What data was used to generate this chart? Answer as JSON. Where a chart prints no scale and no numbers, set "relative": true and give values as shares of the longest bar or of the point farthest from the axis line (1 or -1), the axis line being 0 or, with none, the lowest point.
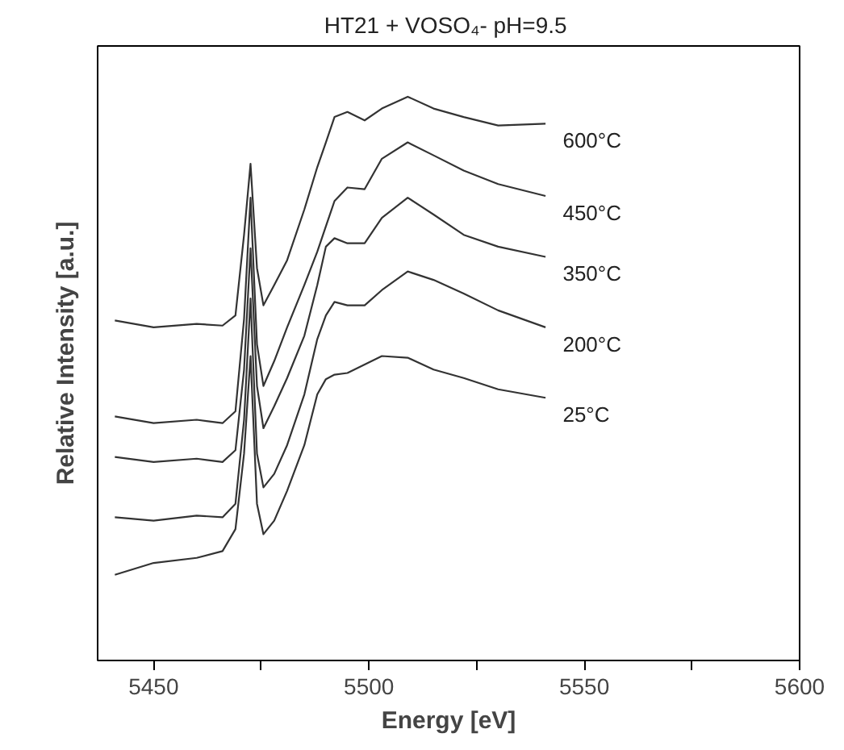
{
  "chart_data": {
    "type": "line",
    "title": "HT21 + VOSO₄-  pH=9.5",
    "xlabel": "Energy [eV]",
    "ylabel": "Relative Intensity [a.u.]",
    "relative": true,
    "xlim": [
      5437,
      5600
    ],
    "xticks": [
      5450,
      {
        "value": 5475,
        "label": null
      },
      5500,
      {
        "value": 5525,
        "label": null
      },
      5550,
      {
        "value": 5575,
        "label": null
      },
      5600
    ],
    "x": [
      5441,
      5450,
      5460,
      5466,
      5469,
      5471,
      5472.5,
      5474,
      5475.5,
      5478,
      5481,
      5485,
      5488,
      5490,
      5492,
      5495,
      5499,
      5503,
      5509,
      5515,
      5522,
      5530,
      5541
    ],
    "grid": false,
    "marker": "none",
    "line_style": "solid",
    "series": [
      {
        "name": "600°C",
        "color": "#333333",
        "values": [
          0.603,
          0.591,
          0.597,
          0.594,
          0.612,
          0.755,
          0.881,
          0.696,
          0.63,
          0.666,
          0.71,
          0.8,
          0.875,
          0.919,
          0.964,
          0.973,
          0.958,
          0.979,
          1.0,
          0.979,
          0.964,
          0.949,
          0.952
        ]
      },
      {
        "name": "450°C",
        "color": "#333333",
        "values": [
          0.433,
          0.421,
          0.427,
          0.421,
          0.442,
          0.606,
          0.821,
          0.561,
          0.487,
          0.531,
          0.591,
          0.666,
          0.725,
          0.77,
          0.815,
          0.839,
          0.836,
          0.89,
          0.919,
          0.896,
          0.869,
          0.845,
          0.824
        ]
      },
      {
        "name": "350°C",
        "color": "#333333",
        "values": [
          0.361,
          0.352,
          0.358,
          0.352,
          0.373,
          0.516,
          0.731,
          0.487,
          0.412,
          0.451,
          0.501,
          0.576,
          0.666,
          0.734,
          0.749,
          0.74,
          0.74,
          0.785,
          0.821,
          0.791,
          0.755,
          0.734,
          0.716
        ]
      },
      {
        "name": "200°C",
        "color": "#333333",
        "values": [
          0.254,
          0.248,
          0.257,
          0.254,
          0.278,
          0.427,
          0.642,
          0.367,
          0.307,
          0.331,
          0.382,
          0.472,
          0.57,
          0.612,
          0.636,
          0.63,
          0.63,
          0.657,
          0.69,
          0.675,
          0.651,
          0.621,
          0.591
        ]
      },
      {
        "name": "25°C",
        "color": "#333333",
        "values": [
          0.152,
          0.173,
          0.182,
          0.194,
          0.233,
          0.367,
          0.54,
          0.278,
          0.224,
          0.248,
          0.301,
          0.382,
          0.472,
          0.499,
          0.507,
          0.51,
          0.525,
          0.54,
          0.537,
          0.516,
          0.501,
          0.481,
          0.466
        ]
      }
    ]
  }
}
